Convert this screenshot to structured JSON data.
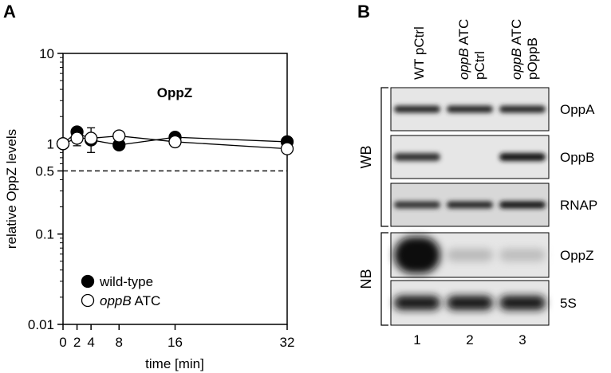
{
  "panels": {
    "a_label": "A",
    "b_label": "B"
  },
  "chart_data": [
    {
      "type": "scatter",
      "title": "OppZ",
      "xlabel": "time [min]",
      "ylabel": "relative OppZ levels",
      "y_scale": "log",
      "ylim": [
        0.01,
        10
      ],
      "xlim": [
        0,
        32
      ],
      "x_ticks": [
        0,
        2,
        4,
        8,
        16,
        32
      ],
      "y_ticks": [
        {
          "value": 0.01,
          "label": "0.01"
        },
        {
          "value": 0.1,
          "label": "0.1"
        },
        {
          "value": 0.5,
          "label": "0.5"
        },
        {
          "value": 1,
          "label": "1"
        },
        {
          "value": 10,
          "label": "10"
        }
      ],
      "reference_line": {
        "value": 0.5,
        "style": "dashed"
      },
      "legend_position": "bottom-left",
      "series": [
        {
          "name": "wild-type",
          "marker": "filled-circle",
          "x": [
            0,
            2,
            4,
            8,
            16,
            32
          ],
          "y": [
            1.0,
            1.35,
            1.1,
            0.97,
            1.18,
            1.05
          ],
          "err": [
            0.0,
            0.12,
            0.08,
            0.08,
            0.07,
            0.06
          ]
        },
        {
          "name": "oppB ATC",
          "name_italic": "oppB",
          "name_rest": " ATC",
          "marker": "open-circle",
          "x": [
            0,
            2,
            4,
            8,
            16,
            32
          ],
          "y": [
            1.0,
            1.15,
            1.15,
            1.22,
            1.05,
            0.88
          ],
          "err": [
            0.0,
            0.2,
            0.35,
            0.08,
            0.1,
            0.1
          ]
        }
      ]
    },
    {
      "type": "blot",
      "lanes": [
        {
          "number": "1",
          "label_parts": [
            {
              "text": "WT pCtrl",
              "italic": false
            }
          ]
        },
        {
          "number": "2",
          "label_parts": [
            {
              "text": "oppB",
              "italic": true
            },
            {
              "text": " ATC",
              "italic": false
            }
          ],
          "label_line2": "pCtrl"
        },
        {
          "number": "3",
          "label_parts": [
            {
              "text": "oppB",
              "italic": true
            },
            {
              "text": " ATC",
              "italic": false
            }
          ],
          "label_line2": "pOppB"
        }
      ],
      "groups": [
        {
          "name": "WB",
          "rows": [
            "OppA",
            "OppB",
            "RNAP"
          ]
        },
        {
          "name": "NB",
          "rows": [
            "OppZ",
            "5S"
          ]
        }
      ],
      "band_intensity": {
        "OppA": [
          0.85,
          0.85,
          0.85
        ],
        "OppB": [
          0.8,
          0.02,
          0.95
        ],
        "RNAP": [
          0.8,
          0.85,
          0.95
        ],
        "OppZ": [
          1.0,
          0.2,
          0.18
        ],
        "5S": [
          0.95,
          0.95,
          0.95
        ]
      }
    }
  ]
}
